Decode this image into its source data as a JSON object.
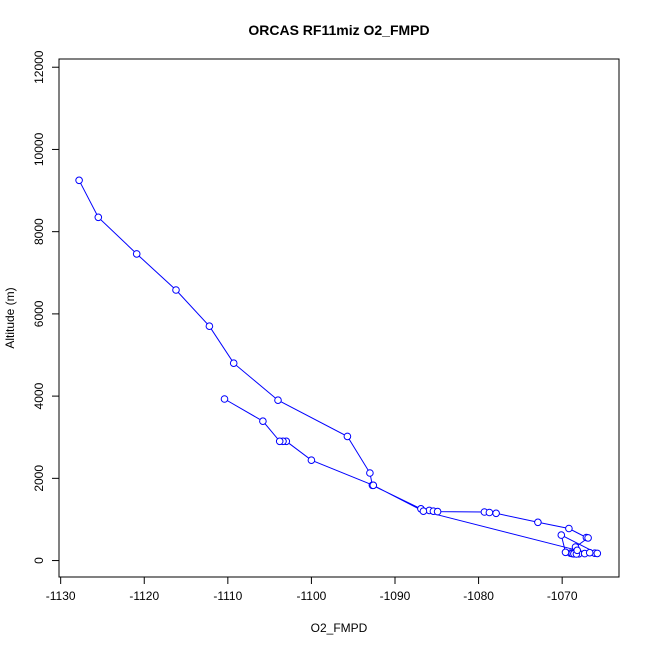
{
  "chart_data": {
    "type": "line",
    "title": "ORCAS RF11miz O2_FMPD",
    "xlabel": "O2_FMPD",
    "ylabel": "Altitude (m)",
    "xlim": [
      -1130.2,
      -1063.2
    ],
    "ylim": [
      -400,
      12200
    ],
    "xticks": [
      -1130,
      -1120,
      -1110,
      -1100,
      -1090,
      -1080,
      -1070
    ],
    "yticks": [
      0,
      2000,
      4000,
      6000,
      8000,
      10000,
      12000
    ],
    "grid": false,
    "color": "#0000ff",
    "series": [
      {
        "name": "",
        "marker": "open-circle",
        "points": [
          [
            -1127.8,
            9250
          ],
          [
            -1125.5,
            8350
          ],
          [
            -1120.9,
            7460
          ],
          [
            -1116.2,
            6580
          ],
          [
            -1112.2,
            5700
          ],
          [
            -1109.3,
            4800
          ],
          [
            -1104.0,
            3900
          ],
          [
            -1095.7,
            3020
          ],
          [
            -1093.0,
            2130
          ],
          [
            -1092.7,
            1830
          ],
          [
            -1086.9,
            1260
          ],
          [
            -1085.9,
            1220
          ],
          [
            -1085.4,
            1200
          ],
          [
            -1084.9,
            1190
          ],
          [
            -1079.3,
            1180
          ],
          [
            -1078.7,
            1170
          ],
          [
            -1077.9,
            1150
          ],
          [
            -1072.9,
            930
          ],
          [
            -1069.2,
            780
          ],
          [
            -1067.1,
            560
          ],
          [
            -1066.9,
            550
          ],
          [
            -1068.4,
            330
          ],
          [
            -1069.0,
            180
          ],
          [
            -1068.8,
            170
          ],
          [
            -1068.6,
            165
          ],
          [
            -1068.0,
            165
          ],
          [
            -1067.3,
            170
          ],
          [
            -1066.1,
            180
          ],
          [
            -1065.8,
            175
          ],
          [
            -1070.1,
            620
          ],
          [
            -1069.6,
            200
          ],
          [
            -1068.3,
            160
          ],
          [
            -1066.7,
            190
          ],
          [
            -1068.2,
            250
          ],
          [
            -1086.6,
            1200
          ],
          [
            -1092.6,
            1830
          ],
          [
            -1100.0,
            2440
          ],
          [
            -1103.0,
            2900
          ],
          [
            -1103.4,
            2900
          ],
          [
            -1103.8,
            2900
          ],
          [
            -1105.8,
            3390
          ],
          [
            -1110.4,
            3930
          ]
        ]
      }
    ]
  }
}
